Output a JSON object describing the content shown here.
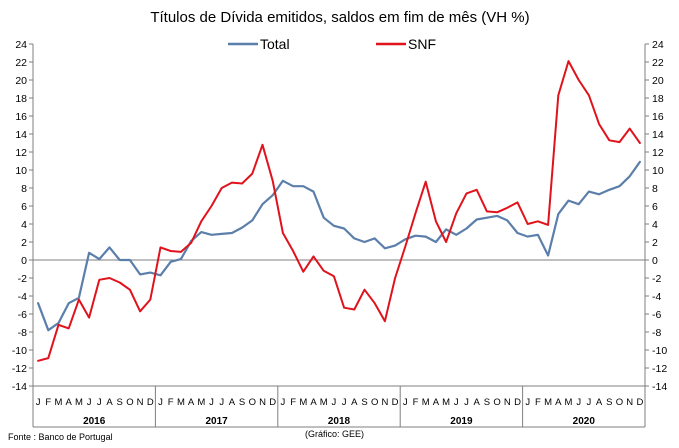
{
  "chart_data": {
    "type": "line",
    "title": "Títulos de Dívida emitidos, saldos em fim de mês (VH %)",
    "source": "Fonte : Banco de Portugal",
    "credit": "(Gráfico: GEE)",
    "ylim": [
      -14,
      24
    ],
    "yticks": [
      "-14",
      "-12",
      "-10",
      "-8",
      "-6",
      "-4",
      "-2",
      "0",
      "2",
      "4",
      "6",
      "8",
      "10",
      "12",
      "14",
      "16",
      "18",
      "20",
      "22",
      "24"
    ],
    "months": [
      "J",
      "F",
      "M",
      "A",
      "M",
      "J",
      "J",
      "A",
      "S",
      "O",
      "N",
      "D",
      "J",
      "F",
      "M",
      "A",
      "M",
      "J",
      "J",
      "A",
      "S",
      "O",
      "N",
      "D",
      "J",
      "F",
      "M",
      "A",
      "M",
      "J",
      "J",
      "A",
      "S",
      "O",
      "N",
      "D",
      "J",
      "F",
      "M",
      "A",
      "M",
      "J",
      "J",
      "A",
      "S",
      "O",
      "N",
      "D",
      "J",
      "F",
      "M",
      "A",
      "M",
      "J",
      "J",
      "A",
      "S",
      "O",
      "N",
      "D"
    ],
    "years": [
      "2016",
      "2017",
      "2018",
      "2019",
      "2020"
    ],
    "grid": false,
    "legend_position": "top-center",
    "series": [
      {
        "name": "Total",
        "color": "#5b7faa",
        "values": [
          -4.8,
          -7.8,
          -7.0,
          -4.8,
          -4.2,
          0.8,
          0.1,
          1.4,
          0.0,
          0.0,
          -1.6,
          -1.4,
          -1.7,
          -0.2,
          0.1,
          2.1,
          3.1,
          2.8,
          2.9,
          3.0,
          3.6,
          4.4,
          6.2,
          7.2,
          8.8,
          8.2,
          8.2,
          7.6,
          4.7,
          3.8,
          3.5,
          2.4,
          2.0,
          2.4,
          1.3,
          1.6,
          2.3,
          2.7,
          2.6,
          2.0,
          3.4,
          2.8,
          3.5,
          4.5,
          4.7,
          4.9,
          4.4,
          3.0,
          2.6,
          2.8,
          0.5,
          5.1,
          6.6,
          6.2,
          7.6,
          7.3,
          7.8,
          8.2,
          9.3,
          10.9
        ]
      },
      {
        "name": "SNF",
        "color": "#e0131c",
        "values": [
          -11.2,
          -10.9,
          -7.2,
          -7.6,
          -4.4,
          -6.4,
          -2.2,
          -2.0,
          -2.5,
          -3.3,
          -5.7,
          -4.4,
          1.4,
          1.0,
          0.9,
          1.9,
          4.3,
          6.0,
          8.0,
          8.6,
          8.5,
          9.6,
          12.8,
          8.8,
          3.0,
          1.0,
          -1.3,
          0.4,
          -1.2,
          -1.8,
          -5.3,
          -5.5,
          -3.3,
          -4.8,
          -6.8,
          -2.0,
          1.5,
          5.2,
          8.7,
          4.3,
          2.0,
          5.2,
          7.4,
          7.8,
          5.4,
          5.3,
          5.8,
          6.4,
          4.0,
          4.3,
          3.9,
          18.3,
          22.1,
          20.0,
          18.3,
          15.1,
          13.3,
          13.1,
          14.6,
          13.0
        ]
      }
    ]
  }
}
